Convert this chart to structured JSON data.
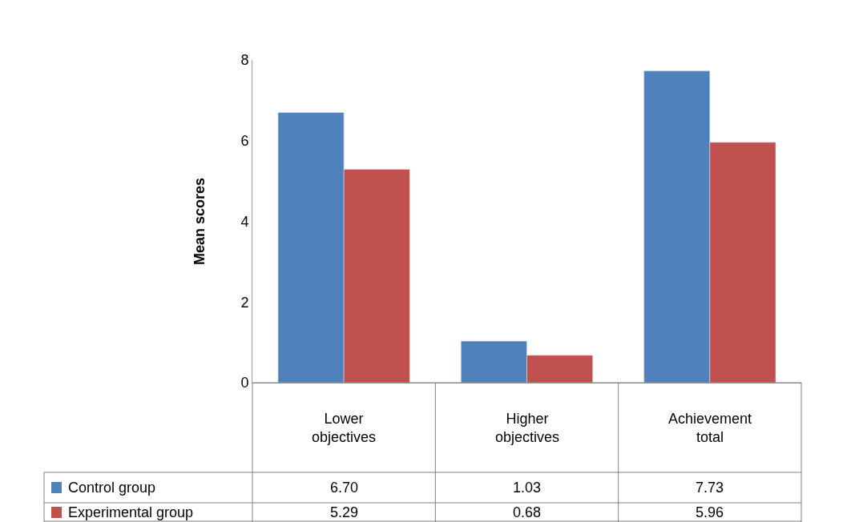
{
  "chart_data": {
    "type": "bar",
    "ylabel": "Mean scores",
    "categories": [
      "Lower objectives",
      "Higher objectives",
      "Achievement total"
    ],
    "series": [
      {
        "name": "Control group",
        "color": "#4f81bd",
        "values": [
          6.7,
          1.03,
          7.73
        ],
        "value_labels": [
          "6.70",
          "1.03",
          "7.73"
        ]
      },
      {
        "name": "Experimental group",
        "color": "#c0504d",
        "values": [
          5.29,
          0.68,
          5.96
        ],
        "value_labels": [
          "5.29",
          "0.68",
          "5.96"
        ]
      }
    ],
    "ylim": [
      0,
      8
    ],
    "yticks": [
      0,
      2,
      4,
      6,
      8
    ],
    "grid": false,
    "legend": "bottom"
  }
}
